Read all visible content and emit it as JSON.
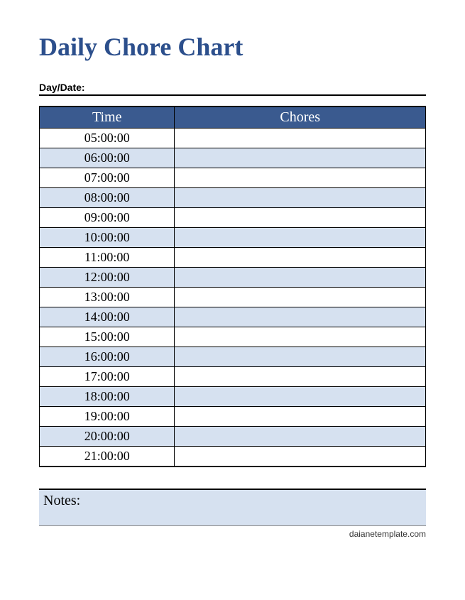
{
  "title": {
    "text": "Daily Chore Chart",
    "color": "#2c4f8c",
    "fontsize": 36
  },
  "daydate": {
    "label": "Day/Date:",
    "value": ""
  },
  "table": {
    "header_bg": "#3a5a8f",
    "header_fg": "#ffffff",
    "alt_row_bg": "#d6e1f0",
    "row_bg": "#ffffff",
    "border_color": "#000000",
    "columns": [
      {
        "key": "time",
        "label": "Time",
        "width_pct": 35,
        "align": "center"
      },
      {
        "key": "chores",
        "label": "Chores",
        "width_pct": 65,
        "align": "center"
      }
    ],
    "rows": [
      {
        "time": "05:00:00",
        "chores": ""
      },
      {
        "time": "06:00:00",
        "chores": ""
      },
      {
        "time": "07:00:00",
        "chores": ""
      },
      {
        "time": "08:00:00",
        "chores": ""
      },
      {
        "time": "09:00:00",
        "chores": ""
      },
      {
        "time": "10:00:00",
        "chores": ""
      },
      {
        "time": "11:00:00",
        "chores": ""
      },
      {
        "time": "12:00:00",
        "chores": ""
      },
      {
        "time": "13:00:00",
        "chores": ""
      },
      {
        "time": "14:00:00",
        "chores": ""
      },
      {
        "time": "15:00:00",
        "chores": ""
      },
      {
        "time": "16:00:00",
        "chores": ""
      },
      {
        "time": "17:00:00",
        "chores": ""
      },
      {
        "time": "18:00:00",
        "chores": ""
      },
      {
        "time": "19:00:00",
        "chores": ""
      },
      {
        "time": "20:00:00",
        "chores": ""
      },
      {
        "time": "21:00:00",
        "chores": ""
      }
    ]
  },
  "notes": {
    "label": "Notes:",
    "bg": "#d6e1f0",
    "value": ""
  },
  "footer": {
    "text": "daianetemplate.com"
  }
}
